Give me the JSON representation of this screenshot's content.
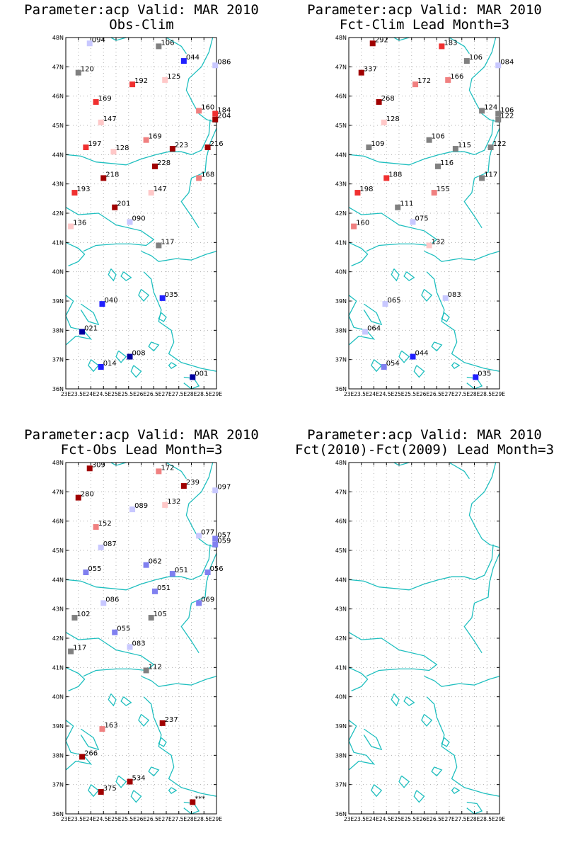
{
  "lat_labels": [
    "36N",
    "37N",
    "38N",
    "39N",
    "40N",
    "41N",
    "42N",
    "43N",
    "44N",
    "45N",
    "46N",
    "47N",
    "48N"
  ],
  "lon_labels": [
    "23E",
    "23.5E",
    "24E",
    "24.5E",
    "25E",
    "25.5E",
    "26E",
    "26.5E",
    "27E",
    "27.5E",
    "28E",
    "28.5E",
    "29E"
  ],
  "colors": {
    "coast": "#1fbfbf",
    "grid": "#b0b0b0",
    "frame": "#000000"
  },
  "panels": [
    {
      "title1": "Parameter:acp Valid: MAR 2010",
      "title2": "Obs-Clim",
      "stations": [
        {
          "lon": 23.95,
          "lat": 47.8,
          "label": "094",
          "color": "#c8c8ff"
        },
        {
          "lon": 26.7,
          "lat": 47.7,
          "label": "106",
          "color": "#808080"
        },
        {
          "lon": 27.7,
          "lat": 47.2,
          "label": "044",
          "color": "#2020ff"
        },
        {
          "lon": 28.95,
          "lat": 47.05,
          "label": "086",
          "color": "#c8c8ff"
        },
        {
          "lon": 23.5,
          "lat": 46.8,
          "label": "120",
          "color": "#808080"
        },
        {
          "lon": 25.65,
          "lat": 46.4,
          "label": "192",
          "color": "#f03030"
        },
        {
          "lon": 26.95,
          "lat": 46.55,
          "label": "125",
          "color": "#ffc8c8"
        },
        {
          "lon": 24.2,
          "lat": 45.8,
          "label": "169",
          "color": "#f03030"
        },
        {
          "lon": 28.3,
          "lat": 45.5,
          "label": "160",
          "color": "#f08080"
        },
        {
          "lon": 28.95,
          "lat": 45.4,
          "label": "184",
          "color": "#f03030"
        },
        {
          "lon": 28.95,
          "lat": 45.2,
          "label": "204",
          "color": "#a00000"
        },
        {
          "lon": 24.4,
          "lat": 45.1,
          "label": "147",
          "color": "#ffc8c8"
        },
        {
          "lon": 26.2,
          "lat": 44.5,
          "label": "169",
          "color": "#f08080"
        },
        {
          "lon": 23.8,
          "lat": 44.25,
          "label": "197",
          "color": "#f03030"
        },
        {
          "lon": 24.9,
          "lat": 44.1,
          "label": "128",
          "color": "#ffc8c8"
        },
        {
          "lon": 27.25,
          "lat": 44.2,
          "label": "223",
          "color": "#a00000"
        },
        {
          "lon": 28.65,
          "lat": 44.25,
          "label": "216",
          "color": "#a00000"
        },
        {
          "lon": 26.55,
          "lat": 43.6,
          "label": "228",
          "color": "#a00000"
        },
        {
          "lon": 24.5,
          "lat": 43.2,
          "label": "218",
          "color": "#a00000"
        },
        {
          "lon": 28.3,
          "lat": 43.2,
          "label": "168",
          "color": "#f08080"
        },
        {
          "lon": 23.35,
          "lat": 42.7,
          "label": "193",
          "color": "#f03030"
        },
        {
          "lon": 26.4,
          "lat": 42.7,
          "label": "147",
          "color": "#ffc8c8"
        },
        {
          "lon": 24.95,
          "lat": 42.2,
          "label": "201",
          "color": "#a00000"
        },
        {
          "lon": 23.2,
          "lat": 41.55,
          "label": "136",
          "color": "#ffc8c8"
        },
        {
          "lon": 25.55,
          "lat": 41.7,
          "label": "090",
          "color": "#c8c8ff"
        },
        {
          "lon": 26.7,
          "lat": 40.9,
          "label": "117",
          "color": "#808080"
        },
        {
          "lon": 24.45,
          "lat": 38.9,
          "label": "040",
          "color": "#2020ff"
        },
        {
          "lon": 26.85,
          "lat": 39.1,
          "label": "035",
          "color": "#2020ff"
        },
        {
          "lon": 23.65,
          "lat": 37.95,
          "label": "021",
          "color": "#0000a0"
        },
        {
          "lon": 25.55,
          "lat": 37.1,
          "label": "008",
          "color": "#0000a0"
        },
        {
          "lon": 24.4,
          "lat": 36.75,
          "label": "014",
          "color": "#2020ff"
        },
        {
          "lon": 28.05,
          "lat": 36.4,
          "label": "001",
          "color": "#0000a0"
        }
      ]
    },
    {
      "title1": "Parameter:acp Valid: MAR 2010",
      "title2": "Fct-Clim Lead Month=3",
      "stations": [
        {
          "lon": 23.95,
          "lat": 47.8,
          "label": "292",
          "color": "#a00000"
        },
        {
          "lon": 26.7,
          "lat": 47.7,
          "label": "183",
          "color": "#f03030"
        },
        {
          "lon": 27.7,
          "lat": 47.2,
          "label": "106",
          "color": "#808080"
        },
        {
          "lon": 28.95,
          "lat": 47.05,
          "label": "084",
          "color": "#c8c8ff"
        },
        {
          "lon": 23.5,
          "lat": 46.8,
          "label": "337",
          "color": "#a00000"
        },
        {
          "lon": 25.65,
          "lat": 46.4,
          "label": "172",
          "color": "#f08080"
        },
        {
          "lon": 26.95,
          "lat": 46.55,
          "label": "166",
          "color": "#f08080"
        },
        {
          "lon": 24.2,
          "lat": 45.8,
          "label": "268",
          "color": "#a00000"
        },
        {
          "lon": 28.3,
          "lat": 45.5,
          "label": "124",
          "color": "#808080"
        },
        {
          "lon": 28.95,
          "lat": 45.4,
          "label": "106",
          "color": "#808080"
        },
        {
          "lon": 28.95,
          "lat": 45.2,
          "label": "122",
          "color": "#808080"
        },
        {
          "lon": 24.4,
          "lat": 45.1,
          "label": "128",
          "color": "#ffc8c8"
        },
        {
          "lon": 26.2,
          "lat": 44.5,
          "label": "106",
          "color": "#808080"
        },
        {
          "lon": 23.8,
          "lat": 44.25,
          "label": "109",
          "color": "#808080"
        },
        {
          "lon": 27.25,
          "lat": 44.2,
          "label": "115",
          "color": "#808080"
        },
        {
          "lon": 28.65,
          "lat": 44.25,
          "label": "122",
          "color": "#808080"
        },
        {
          "lon": 26.55,
          "lat": 43.6,
          "label": "116",
          "color": "#808080"
        },
        {
          "lon": 24.5,
          "lat": 43.2,
          "label": "188",
          "color": "#f03030"
        },
        {
          "lon": 28.3,
          "lat": 43.2,
          "label": "117",
          "color": "#808080"
        },
        {
          "lon": 23.35,
          "lat": 42.7,
          "label": "198",
          "color": "#f03030"
        },
        {
          "lon": 26.4,
          "lat": 42.7,
          "label": "155",
          "color": "#f08080"
        },
        {
          "lon": 24.95,
          "lat": 42.2,
          "label": "111",
          "color": "#808080"
        },
        {
          "lon": 23.2,
          "lat": 41.55,
          "label": "160",
          "color": "#f08080"
        },
        {
          "lon": 25.55,
          "lat": 41.7,
          "label": "075",
          "color": "#c8c8ff"
        },
        {
          "lon": 26.2,
          "lat": 40.9,
          "label": "132",
          "color": "#ffc8c8"
        },
        {
          "lon": 24.45,
          "lat": 38.9,
          "label": "065",
          "color": "#c8c8ff"
        },
        {
          "lon": 26.85,
          "lat": 39.1,
          "label": "083",
          "color": "#c8c8ff"
        },
        {
          "lon": 23.65,
          "lat": 37.95,
          "label": "064",
          "color": "#c8c8ff"
        },
        {
          "lon": 25.55,
          "lat": 37.1,
          "label": "044",
          "color": "#2020ff"
        },
        {
          "lon": 24.4,
          "lat": 36.75,
          "label": "054",
          "color": "#8080f0"
        },
        {
          "lon": 28.05,
          "lat": 36.4,
          "label": "035",
          "color": "#2020ff"
        }
      ]
    },
    {
      "title1": "Parameter:acp Valid: MAR 2010",
      "title2": "Fct-Obs Lead Month=3",
      "stations": [
        {
          "lon": 23.95,
          "lat": 47.8,
          "label": "309",
          "color": "#a00000"
        },
        {
          "lon": 26.7,
          "lat": 47.7,
          "label": "172",
          "color": "#f08080"
        },
        {
          "lon": 27.7,
          "lat": 47.2,
          "label": "239",
          "color": "#a00000"
        },
        {
          "lon": 28.95,
          "lat": 47.05,
          "label": "097",
          "color": "#c8c8ff"
        },
        {
          "lon": 23.5,
          "lat": 46.8,
          "label": "280",
          "color": "#a00000"
        },
        {
          "lon": 25.65,
          "lat": 46.4,
          "label": "089",
          "color": "#c8c8ff"
        },
        {
          "lon": 26.95,
          "lat": 46.55,
          "label": "132",
          "color": "#ffc8c8"
        },
        {
          "lon": 24.2,
          "lat": 45.8,
          "label": "152",
          "color": "#f08080"
        },
        {
          "lon": 28.3,
          "lat": 45.5,
          "label": "077",
          "color": "#c8c8ff"
        },
        {
          "lon": 28.95,
          "lat": 45.4,
          "label": "057",
          "color": "#8080f0"
        },
        {
          "lon": 28.95,
          "lat": 45.2,
          "label": "059",
          "color": "#8080f0"
        },
        {
          "lon": 24.4,
          "lat": 45.1,
          "label": "087",
          "color": "#c8c8ff"
        },
        {
          "lon": 26.2,
          "lat": 44.5,
          "label": "062",
          "color": "#8080f0"
        },
        {
          "lon": 23.8,
          "lat": 44.25,
          "label": "055",
          "color": "#8080f0"
        },
        {
          "lon": 27.25,
          "lat": 44.2,
          "label": "051",
          "color": "#8080f0"
        },
        {
          "lon": 28.65,
          "lat": 44.25,
          "label": "056",
          "color": "#8080f0"
        },
        {
          "lon": 26.55,
          "lat": 43.6,
          "label": "051",
          "color": "#8080f0"
        },
        {
          "lon": 24.5,
          "lat": 43.2,
          "label": "086",
          "color": "#c8c8ff"
        },
        {
          "lon": 28.3,
          "lat": 43.2,
          "label": "069",
          "color": "#8080f0"
        },
        {
          "lon": 23.35,
          "lat": 42.7,
          "label": "102",
          "color": "#808080"
        },
        {
          "lon": 26.4,
          "lat": 42.7,
          "label": "105",
          "color": "#808080"
        },
        {
          "lon": 24.95,
          "lat": 42.2,
          "label": "055",
          "color": "#8080f0"
        },
        {
          "lon": 23.2,
          "lat": 41.55,
          "label": "117",
          "color": "#808080"
        },
        {
          "lon": 25.55,
          "lat": 41.7,
          "label": "083",
          "color": "#c8c8ff"
        },
        {
          "lon": 26.2,
          "lat": 40.9,
          "label": "112",
          "color": "#808080"
        },
        {
          "lon": 24.45,
          "lat": 38.9,
          "label": "163",
          "color": "#f08080"
        },
        {
          "lon": 26.85,
          "lat": 39.1,
          "label": "237",
          "color": "#a00000"
        },
        {
          "lon": 23.65,
          "lat": 37.95,
          "label": "266",
          "color": "#a00000"
        },
        {
          "lon": 25.55,
          "lat": 37.1,
          "label": "534",
          "color": "#a00000"
        },
        {
          "lon": 24.4,
          "lat": 36.75,
          "label": "375",
          "color": "#a00000"
        },
        {
          "lon": 28.05,
          "lat": 36.4,
          "label": "***",
          "color": "#a00000"
        }
      ]
    },
    {
      "title1": "Parameter:acp Valid: MAR 2010",
      "title2": "Fct(2010)-Fct(2009) Lead Month=3",
      "stations": []
    }
  ]
}
